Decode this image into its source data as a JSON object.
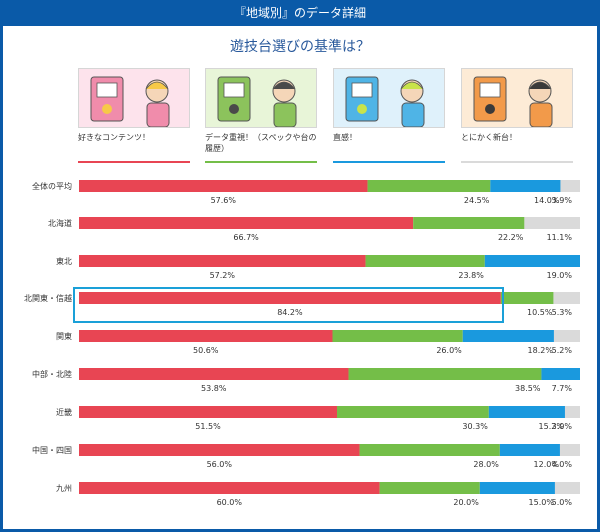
{
  "header": {
    "title": "『地域別』のデータ詳細"
  },
  "question": "遊技台選びの基準は？",
  "colors": {
    "c1": "#e84553",
    "c2": "#74be48",
    "c3": "#1a99de",
    "c4": "#dadada",
    "highlight": "#1aa0d8",
    "header": "#0a5aa8"
  },
  "legend": [
    {
      "label": "好きなコンテンツ！",
      "color": "#e84553",
      "illustration": "heart-person-icon"
    },
    {
      "label": "データ重視！（スペックや台の履歴）",
      "color": "#74be48",
      "illustration": "data-person-icon"
    },
    {
      "label": "直感！",
      "color": "#1a99de",
      "illustration": "intuition-person-icon"
    },
    {
      "label": "とにかく新台！",
      "color": "#dadada",
      "illustration": "new-machine-person-icon"
    }
  ],
  "chart_data": {
    "type": "bar",
    "orientation": "horizontal",
    "stacked": true,
    "percent_stacked": true,
    "title": "遊技台選びの基準は？",
    "categories": [
      "全体の平均",
      "北海道",
      "東北",
      "北関東・信越",
      "関東",
      "中部・北陸",
      "近畿",
      "中国・四国",
      "九州"
    ],
    "series": [
      {
        "name": "好きなコンテンツ！",
        "color": "#e84553",
        "values": [
          57.6,
          66.7,
          57.2,
          84.2,
          50.6,
          53.8,
          51.5,
          56.0,
          60.0
        ],
        "labels": [
          "57.6%",
          "66.7%",
          "57.2%",
          "84.2%",
          "50.6%",
          "53.8%",
          "51.5%",
          "56.0%",
          "60.0%"
        ]
      },
      {
        "name": "データ重視！（スペックや台の履歴）",
        "color": "#74be48",
        "values": [
          24.5,
          22.2,
          23.8,
          10.5,
          26.0,
          38.5,
          30.3,
          28.0,
          20.0
        ],
        "labels": [
          "24.5%",
          "22.2%",
          "23.8%",
          "10.5%",
          "26.0%",
          "38.5%",
          "30.3%",
          "28.0%",
          "20.0%"
        ]
      },
      {
        "name": "直感！",
        "color": "#1a99de",
        "values": [
          14.0,
          0,
          19.0,
          0,
          18.2,
          7.7,
          15.2,
          12.0,
          15.0
        ],
        "labels": [
          "14.0%",
          "",
          "19.0%",
          "",
          "18.2%",
          "7.7%",
          "15.2%",
          "12.0%",
          "15.0%"
        ]
      },
      {
        "name": "とにかく新台！",
        "color": "#dadada",
        "values": [
          3.9,
          11.1,
          0,
          5.3,
          5.2,
          0,
          3.0,
          4.0,
          5.0
        ],
        "labels": [
          "3.9%",
          "11.1%",
          "",
          "5.3%",
          "5.2%",
          "",
          "3.0%",
          "4.0%",
          "5.0%"
        ]
      }
    ],
    "highlighted_category": "北関東・信越",
    "xlim": [
      0,
      100
    ],
    "legend_position": "top"
  }
}
